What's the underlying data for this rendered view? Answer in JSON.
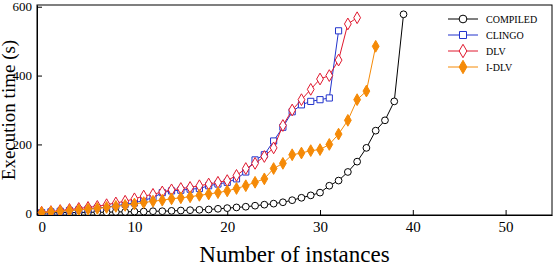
{
  "chart_data": {
    "type": "line",
    "x_label": "Number of instances",
    "y_label": "Execution time (s)",
    "x": [
      0,
      1,
      2,
      3,
      4,
      5,
      6,
      7,
      8,
      9,
      10,
      11,
      12,
      13,
      14,
      15,
      16,
      17,
      18,
      19,
      20,
      21,
      22,
      23,
      24,
      25,
      26,
      27,
      28,
      29,
      30,
      31,
      32,
      33,
      34,
      35,
      36,
      37,
      38,
      39
    ],
    "xlim": [
      -0.5,
      55
    ],
    "xticks": [
      0,
      10,
      20,
      30,
      40,
      50
    ],
    "ylim": [
      -5,
      605
    ],
    "yticks": [
      0,
      200,
      400,
      600
    ],
    "grid": false,
    "legend": "top-right",
    "series": [
      {
        "name": "COMPILED",
        "color": "#000000",
        "marker": "circle-open",
        "line_style": "solid",
        "values": [
          1,
          1,
          2,
          2,
          2,
          3,
          3,
          3,
          4,
          4,
          5,
          5,
          6,
          6,
          7,
          8,
          9,
          10,
          11,
          13,
          15,
          17,
          19,
          22,
          25,
          28,
          32,
          38,
          45,
          52,
          60,
          80,
          95,
          120,
          150,
          190,
          240,
          270,
          325,
          578
        ]
      },
      {
        "name": "CLINGO",
        "color": "#2233cc",
        "marker": "square-open",
        "line_style": "solid",
        "values": [
          2,
          4,
          6,
          8,
          10,
          12,
          15,
          18,
          22,
          26,
          30,
          38,
          45,
          60,
          65,
          67,
          70,
          72,
          80,
          85,
          90,
          100,
          120,
          155,
          170,
          210,
          250,
          295,
          315,
          325,
          330,
          335,
          530,
          null,
          null,
          null,
          null,
          null,
          null,
          null
        ]
      },
      {
        "name": "DLV",
        "color": "#e0182e",
        "marker": "diamond-open",
        "line_style": "solid",
        "values": [
          3,
          5,
          8,
          11,
          14,
          17,
          20,
          25,
          30,
          35,
          42,
          50,
          55,
          62,
          68,
          72,
          75,
          80,
          85,
          90,
          95,
          110,
          130,
          145,
          165,
          190,
          255,
          300,
          330,
          360,
          390,
          400,
          445,
          550,
          568,
          null,
          null,
          null,
          null,
          null
        ]
      },
      {
        "name": "I-DLV",
        "color": "#f58a07",
        "marker": "diamond-filled",
        "line_style": "solid",
        "values": [
          2,
          4,
          6,
          8,
          10,
          12,
          14,
          17,
          20,
          23,
          27,
          31,
          35,
          38,
          42,
          45,
          48,
          52,
          56,
          60,
          65,
          72,
          80,
          90,
          100,
          130,
          145,
          170,
          175,
          182,
          185,
          200,
          230,
          270,
          330,
          355,
          485,
          null,
          null,
          null
        ]
      }
    ]
  }
}
